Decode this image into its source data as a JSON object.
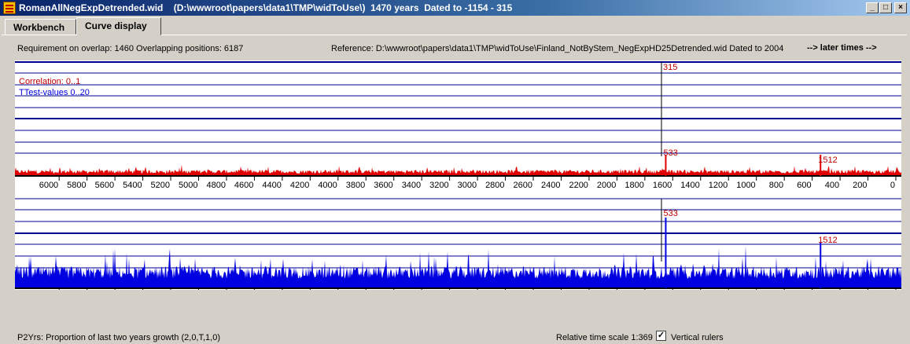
{
  "window": {
    "title": "RomanAllNegExpDetrended.wid    (D:\\wwwroot\\papers\\data1\\TMP\\widToUse\\)  1470 years  Dated to -1154 - 315",
    "minimize_glyph": "_",
    "maximize_glyph": "□",
    "close_glyph": "×"
  },
  "tabs": [
    {
      "label": "Workbench"
    },
    {
      "label": "Curve display"
    }
  ],
  "info": {
    "requirement": "Requirement on overlap: 1460  Overlapping positions: 6187",
    "reference": "Reference: D:\\wwwroot\\papers\\data1\\TMP\\widToUse\\Finland_NotByStem_NegExpHD25Detrended.wid  Dated to 2004",
    "later_times": "--> later times -->"
  },
  "plot": {
    "correlation_label": "Correlation: 0..1",
    "ttest_label": "TTest-values 0..20",
    "marker_label": "315",
    "x_ticks": [
      6000,
      5800,
      5600,
      5400,
      5200,
      5000,
      4800,
      4600,
      4400,
      4200,
      4000,
      3800,
      3600,
      3400,
      3200,
      3000,
      2800,
      2600,
      2400,
      2200,
      2000,
      1800,
      1600,
      1400,
      1200,
      1000,
      800,
      600,
      400,
      200,
      0
    ],
    "red_peaks": [
      {
        "label": "533",
        "pos": 1650
      },
      {
        "label": "1512",
        "pos": 540
      }
    ],
    "blue_peaks": [
      {
        "label": "533",
        "pos": 1650
      },
      {
        "label": "1512",
        "pos": 540
      }
    ],
    "colors": {
      "red": "#e00000",
      "blue": "#0000e0",
      "grid": "#000090",
      "label_red": "#c00000"
    }
  },
  "status": {
    "description": "P2Yrs: Proportion of last two years growth (2,0,T,1,0)",
    "time_scale": "Relative time scale 1:369",
    "checkbox_checked": "✓",
    "vertical_rulers": "Vertical rulers"
  }
}
